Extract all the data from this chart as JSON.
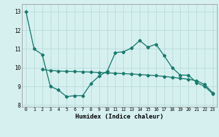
{
  "line1_x": [
    0,
    1,
    2,
    3,
    4,
    5,
    6,
    7,
    8,
    9,
    10,
    11,
    12,
    13,
    14,
    15,
    16,
    17,
    18,
    19,
    20,
    21,
    22,
    23
  ],
  "line1_y": [
    13.0,
    11.0,
    10.7,
    9.0,
    8.8,
    8.45,
    8.5,
    8.5,
    9.15,
    9.55,
    9.8,
    10.8,
    10.85,
    11.05,
    11.45,
    11.1,
    11.25,
    10.65,
    10.0,
    9.6,
    9.6,
    9.2,
    9.0,
    8.6
  ],
  "line2_x": [
    2,
    3,
    4,
    5,
    6,
    7,
    8,
    9,
    10,
    11,
    12,
    13,
    14,
    15,
    16,
    17,
    18,
    19,
    20,
    21,
    22,
    23
  ],
  "line2_y": [
    9.9,
    9.85,
    9.82,
    9.8,
    9.79,
    9.78,
    9.76,
    9.74,
    9.72,
    9.7,
    9.68,
    9.66,
    9.63,
    9.6,
    9.57,
    9.53,
    9.48,
    9.43,
    9.38,
    9.3,
    9.1,
    8.65
  ],
  "color": "#1a7a6e",
  "bg_color": "#d6f0f0",
  "grid_color": "#b8dada",
  "xlabel": "Humidex (Indice chaleur)",
  "ylim": [
    7.9,
    13.4
  ],
  "xlim": [
    -0.5,
    23.5
  ],
  "yticks": [
    8,
    9,
    10,
    11,
    12,
    13
  ],
  "xticks": [
    0,
    1,
    2,
    3,
    4,
    5,
    6,
    7,
    8,
    9,
    10,
    11,
    12,
    13,
    14,
    15,
    16,
    17,
    18,
    19,
    20,
    21,
    22,
    23
  ],
  "xtick_labels": [
    "0",
    "1",
    "2",
    "3",
    "4",
    "5",
    "6",
    "7",
    "8",
    "9",
    "10",
    "11",
    "12",
    "13",
    "14",
    "15",
    "16",
    "17",
    "18",
    "19",
    "20",
    "21",
    "22",
    "23"
  ],
  "marker": "D",
  "markersize": 2.2,
  "linewidth": 1.0,
  "xlabel_fontsize": 6.5
}
